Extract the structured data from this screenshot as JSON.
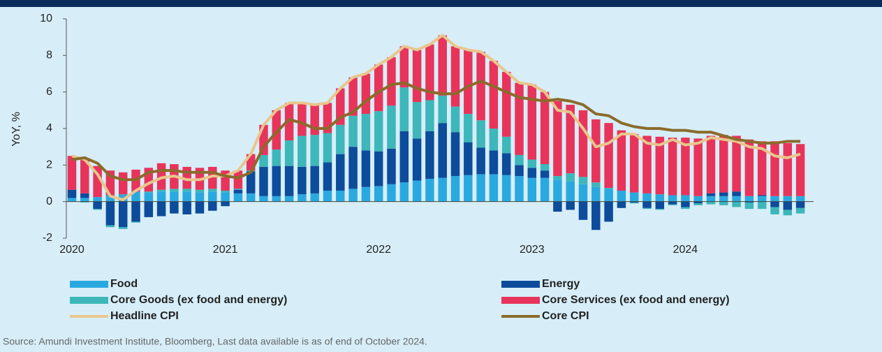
{
  "chart_data": {
    "type": "bar",
    "stacked": true,
    "y_label": "YoY, %",
    "source": "Source: Amundi Investment Institute, Bloomberg, Last data available is as of end of October 2024.",
    "categories": [
      "2020",
      null,
      null,
      null,
      null,
      null,
      null,
      null,
      null,
      null,
      null,
      null,
      "2021",
      null,
      null,
      null,
      null,
      null,
      null,
      null,
      null,
      null,
      null,
      null,
      "2022",
      null,
      null,
      null,
      null,
      null,
      null,
      null,
      null,
      null,
      null,
      null,
      "2023",
      null,
      null,
      null,
      null,
      null,
      null,
      null,
      null,
      null,
      null,
      null,
      "2024",
      null,
      null,
      null,
      null,
      null,
      null,
      null,
      null,
      null
    ],
    "ylim": [
      -2,
      10
    ],
    "yticks": [
      -2,
      0,
      2,
      4,
      6,
      8,
      10
    ],
    "series": [
      {
        "name": "Food",
        "type": "bar",
        "color": "#2aa9e0",
        "values": [
          0.2,
          0.2,
          0.25,
          0.35,
          0.4,
          0.55,
          0.5,
          0.55,
          0.55,
          0.55,
          0.5,
          0.55,
          0.5,
          0.45,
          0.45,
          0.3,
          0.3,
          0.3,
          0.4,
          0.45,
          0.6,
          0.6,
          0.7,
          0.8,
          0.85,
          0.95,
          1.05,
          1.15,
          1.25,
          1.3,
          1.4,
          1.45,
          1.5,
          1.5,
          1.45,
          1.4,
          1.3,
          1.3,
          1.2,
          1.1,
          0.95,
          0.8,
          0.7,
          0.6,
          0.5,
          0.45,
          0.4,
          0.35,
          0.35,
          0.3,
          0.3,
          0.3,
          0.3,
          0.3,
          0.3,
          0.3,
          0.3,
          0.3
        ]
      },
      {
        "name": "Energy",
        "type": "bar",
        "color": "#0d4b9b",
        "values": [
          0.45,
          0.25,
          -0.4,
          -1.3,
          -1.4,
          -1.1,
          -0.85,
          -0.8,
          -0.65,
          -0.7,
          -0.65,
          -0.5,
          -0.25,
          0.2,
          1.2,
          1.6,
          1.65,
          1.65,
          1.5,
          1.5,
          1.55,
          2.0,
          2.3,
          2.0,
          1.9,
          1.95,
          2.8,
          2.3,
          2.6,
          3.0,
          2.4,
          1.8,
          1.45,
          1.3,
          1.2,
          0.6,
          0.55,
          0.4,
          -0.55,
          -0.45,
          -1.0,
          -1.55,
          -1.1,
          -0.35,
          -0.05,
          -0.35,
          -0.4,
          -0.15,
          -0.3,
          -0.1,
          0.15,
          0.2,
          0.25,
          -0.05,
          0.05,
          -0.3,
          -0.45,
          -0.35
        ]
      },
      {
        "name": "Core Goods (ex food and energy)",
        "type": "bar",
        "color": "#3db7b9",
        "values": [
          0,
          -0.05,
          -0.05,
          -0.1,
          -0.1,
          -0.05,
          0.05,
          0.1,
          0.15,
          0.15,
          0.15,
          0.15,
          0.1,
          0.05,
          0.05,
          0.65,
          0.9,
          1.4,
          1.7,
          1.7,
          1.6,
          1.6,
          1.7,
          2.0,
          2.2,
          2.35,
          2.4,
          2.0,
          1.7,
          1.5,
          1.4,
          1.55,
          1.5,
          1.2,
          0.9,
          0.55,
          0.45,
          0.35,
          0.2,
          0.45,
          0.4,
          0.25,
          0.05,
          0.0,
          -0.05,
          -0.05,
          -0.05,
          -0.05,
          -0.1,
          -0.1,
          -0.15,
          -0.2,
          -0.3,
          -0.35,
          -0.4,
          -0.4,
          -0.3,
          -0.3
        ]
      },
      {
        "name": "Core Services (ex food and energy)",
        "type": "bar",
        "color": "#e8345b",
        "values": [
          1.85,
          1.9,
          1.7,
          1.35,
          1.2,
          1.2,
          1.3,
          1.45,
          1.35,
          1.2,
          1.2,
          1.2,
          1.1,
          1.0,
          0.9,
          1.65,
          2.15,
          2.05,
          1.8,
          1.65,
          1.65,
          2.0,
          2.1,
          2.2,
          2.55,
          2.65,
          2.25,
          2.85,
          3.05,
          3.3,
          3.3,
          3.5,
          3.75,
          3.7,
          3.55,
          3.95,
          4.1,
          3.95,
          4.1,
          3.75,
          3.65,
          3.45,
          3.55,
          3.3,
          3.2,
          3.15,
          3.15,
          3.15,
          3.15,
          3.15,
          3.15,
          3.15,
          3.05,
          3.1,
          2.95,
          3.0,
          2.9,
          2.85
        ]
      },
      {
        "name": "Headline CPI",
        "type": "line",
        "color": "#e9c68d",
        "values": [
          2.5,
          2.3,
          1.5,
          0.3,
          0.1,
          0.6,
          1.0,
          1.3,
          1.4,
          1.2,
          1.2,
          1.4,
          1.4,
          1.7,
          2.6,
          4.2,
          5.0,
          5.4,
          5.4,
          5.3,
          5.4,
          6.2,
          6.8,
          7.0,
          7.5,
          7.9,
          8.5,
          8.3,
          8.6,
          9.1,
          8.5,
          8.3,
          8.2,
          7.7,
          7.1,
          6.5,
          6.4,
          6.0,
          5.0,
          4.9,
          4.0,
          3.0,
          3.2,
          3.7,
          3.7,
          3.2,
          3.1,
          3.4,
          3.1,
          3.2,
          3.5,
          3.4,
          3.3,
          3.0,
          2.9,
          2.5,
          2.4,
          2.6
        ]
      },
      {
        "name": "Core CPI",
        "type": "line",
        "color": "#8b6b2b",
        "values": [
          2.3,
          2.4,
          2.1,
          1.4,
          1.2,
          1.2,
          1.6,
          1.7,
          1.7,
          1.6,
          1.6,
          1.6,
          1.4,
          1.3,
          1.6,
          3.0,
          3.8,
          4.5,
          4.3,
          4.0,
          4.0,
          4.6,
          4.9,
          5.5,
          6.0,
          6.4,
          6.5,
          6.2,
          6.0,
          5.9,
          5.9,
          6.3,
          6.6,
          6.3,
          6.0,
          5.7,
          5.6,
          5.5,
          5.6,
          5.5,
          5.3,
          4.8,
          4.7,
          4.3,
          4.1,
          4.0,
          4.0,
          3.9,
          3.9,
          3.8,
          3.8,
          3.6,
          3.4,
          3.3,
          3.2,
          3.2,
          3.3,
          3.3
        ]
      }
    ]
  }
}
